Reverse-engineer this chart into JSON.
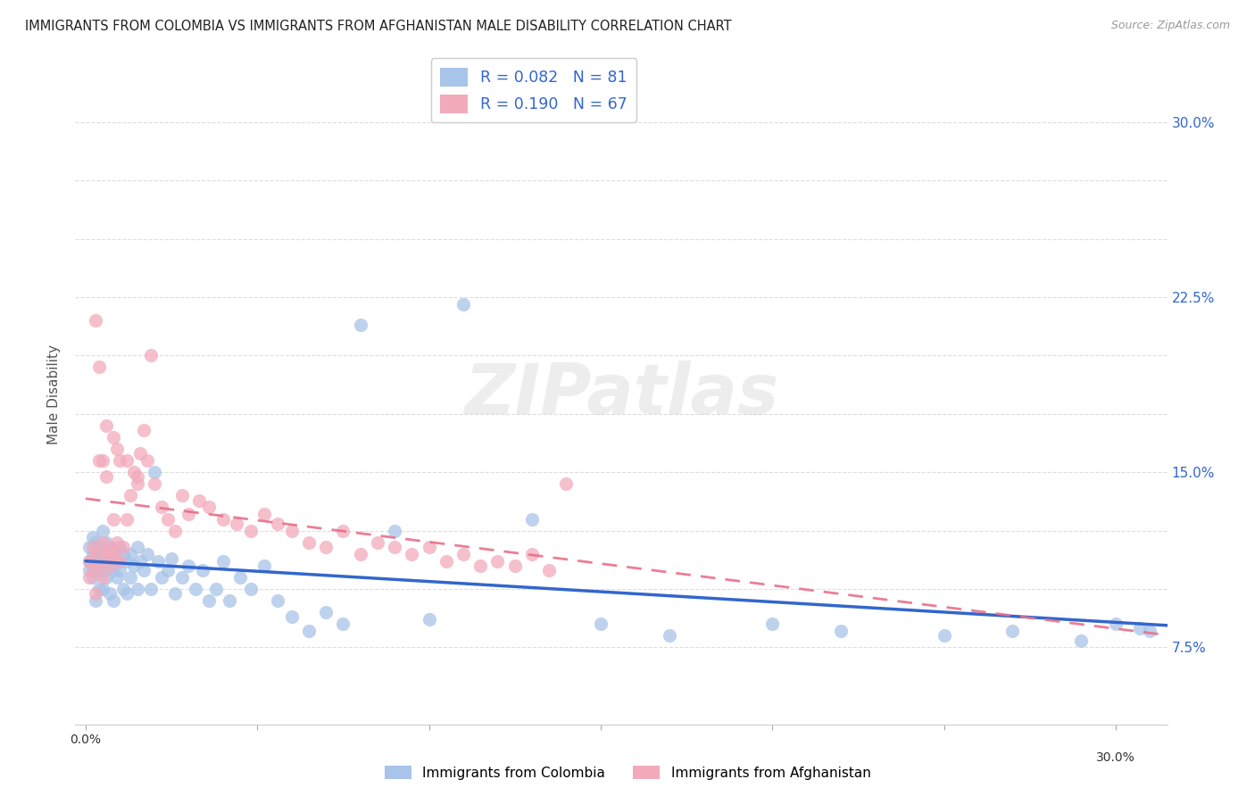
{
  "title": "IMMIGRANTS FROM COLOMBIA VS IMMIGRANTS FROM AFGHANISTAN MALE DISABILITY CORRELATION CHART",
  "source": "Source: ZipAtlas.com",
  "ylabel": "Male Disability",
  "colombia_color": "#A8C4E8",
  "afghanistan_color": "#F2AABB",
  "colombia_line_color": "#3366CC",
  "afghanistan_line_color": "#E8708A",
  "R_colombia": 0.082,
  "N_colombia": 81,
  "R_afghanistan": 0.19,
  "N_afghanistan": 67,
  "xlim": [
    -0.003,
    0.315
  ],
  "ylim": [
    0.042,
    0.325
  ],
  "background_color": "#FFFFFF",
  "grid_color": "#DDDDDD",
  "watermark": "ZIPatlas",
  "right_y_ticks": [
    0.075,
    0.15,
    0.225,
    0.3
  ],
  "right_y_tick_labels": [
    "7.5%",
    "15.0%",
    "22.5%",
    "30.0%"
  ],
  "colombia_x": [
    0.001,
    0.001,
    0.001,
    0.002,
    0.002,
    0.002,
    0.002,
    0.003,
    0.003,
    0.003,
    0.003,
    0.004,
    0.004,
    0.004,
    0.005,
    0.005,
    0.005,
    0.005,
    0.006,
    0.006,
    0.006,
    0.007,
    0.007,
    0.007,
    0.008,
    0.008,
    0.008,
    0.009,
    0.009,
    0.01,
    0.01,
    0.011,
    0.011,
    0.012,
    0.012,
    0.013,
    0.013,
    0.014,
    0.015,
    0.015,
    0.016,
    0.017,
    0.018,
    0.019,
    0.02,
    0.021,
    0.022,
    0.024,
    0.025,
    0.026,
    0.028,
    0.03,
    0.032,
    0.034,
    0.036,
    0.038,
    0.04,
    0.042,
    0.045,
    0.048,
    0.052,
    0.056,
    0.06,
    0.065,
    0.07,
    0.075,
    0.08,
    0.09,
    0.1,
    0.11,
    0.13,
    0.15,
    0.17,
    0.2,
    0.22,
    0.25,
    0.27,
    0.29,
    0.3,
    0.307,
    0.31
  ],
  "colombia_y": [
    0.118,
    0.112,
    0.108,
    0.122,
    0.115,
    0.11,
    0.105,
    0.12,
    0.113,
    0.108,
    0.095,
    0.118,
    0.11,
    0.1,
    0.125,
    0.115,
    0.108,
    0.1,
    0.12,
    0.112,
    0.105,
    0.118,
    0.11,
    0.098,
    0.115,
    0.108,
    0.095,
    0.113,
    0.105,
    0.118,
    0.108,
    0.115,
    0.1,
    0.112,
    0.098,
    0.115,
    0.105,
    0.11,
    0.118,
    0.1,
    0.112,
    0.108,
    0.115,
    0.1,
    0.15,
    0.112,
    0.105,
    0.108,
    0.113,
    0.098,
    0.105,
    0.11,
    0.1,
    0.108,
    0.095,
    0.1,
    0.112,
    0.095,
    0.105,
    0.1,
    0.11,
    0.095,
    0.088,
    0.082,
    0.09,
    0.085,
    0.213,
    0.125,
    0.087,
    0.222,
    0.13,
    0.085,
    0.08,
    0.085,
    0.082,
    0.08,
    0.082,
    0.078,
    0.085,
    0.083,
    0.082
  ],
  "afghanistan_x": [
    0.001,
    0.001,
    0.002,
    0.002,
    0.003,
    0.003,
    0.004,
    0.004,
    0.005,
    0.005,
    0.005,
    0.006,
    0.006,
    0.007,
    0.007,
    0.008,
    0.008,
    0.009,
    0.009,
    0.01,
    0.01,
    0.011,
    0.012,
    0.013,
    0.014,
    0.015,
    0.016,
    0.017,
    0.018,
    0.019,
    0.02,
    0.022,
    0.024,
    0.026,
    0.028,
    0.03,
    0.033,
    0.036,
    0.04,
    0.044,
    0.048,
    0.052,
    0.056,
    0.06,
    0.065,
    0.07,
    0.075,
    0.08,
    0.085,
    0.09,
    0.095,
    0.1,
    0.105,
    0.11,
    0.115,
    0.12,
    0.125,
    0.13,
    0.135,
    0.14,
    0.003,
    0.004,
    0.006,
    0.007,
    0.008,
    0.012,
    0.015
  ],
  "afghanistan_y": [
    0.112,
    0.105,
    0.118,
    0.108,
    0.115,
    0.098,
    0.195,
    0.11,
    0.155,
    0.12,
    0.105,
    0.115,
    0.17,
    0.118,
    0.11,
    0.115,
    0.165,
    0.16,
    0.12,
    0.155,
    0.112,
    0.118,
    0.155,
    0.14,
    0.15,
    0.145,
    0.158,
    0.168,
    0.155,
    0.2,
    0.145,
    0.135,
    0.13,
    0.125,
    0.14,
    0.132,
    0.138,
    0.135,
    0.13,
    0.128,
    0.125,
    0.132,
    0.128,
    0.125,
    0.12,
    0.118,
    0.125,
    0.115,
    0.12,
    0.118,
    0.115,
    0.118,
    0.112,
    0.115,
    0.11,
    0.112,
    0.11,
    0.115,
    0.108,
    0.145,
    0.215,
    0.155,
    0.148,
    0.115,
    0.13,
    0.13,
    0.148
  ]
}
